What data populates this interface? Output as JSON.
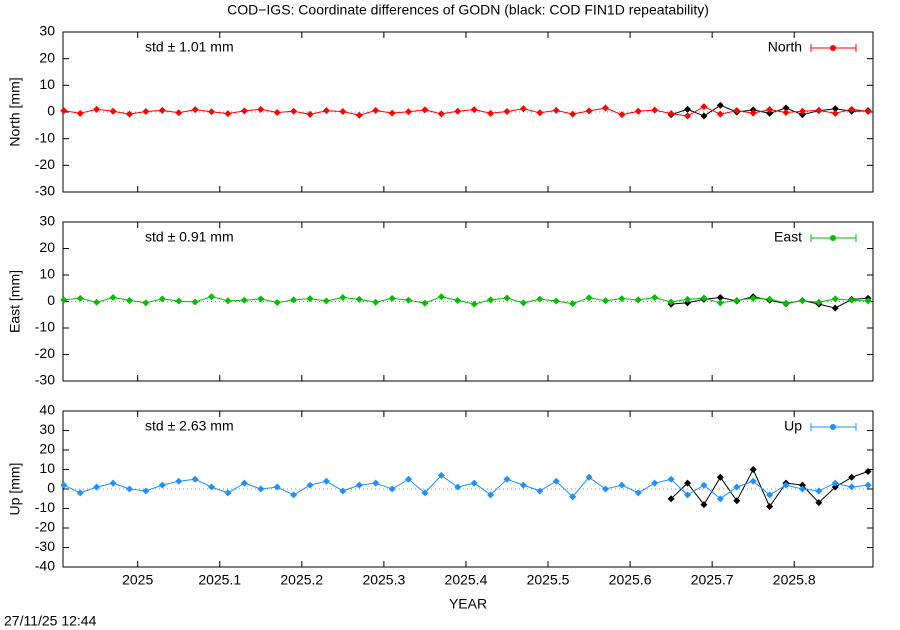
{
  "chart_data": [
    {
      "type": "line",
      "title": "COD−IGS: Coordinate differences of GODN (black: COD FIN1D repeatability)",
      "ylabel": "North [mm]",
      "annotation": "std ± 1.01 mm",
      "legend": "upper right",
      "x": [
        2024.91,
        2024.93,
        2024.95,
        2024.97,
        2024.99,
        2025.01,
        2025.03,
        2025.05,
        2025.07,
        2025.09,
        2025.11,
        2025.13,
        2025.15,
        2025.17,
        2025.19,
        2025.21,
        2025.23,
        2025.25,
        2025.27,
        2025.29,
        2025.31,
        2025.33,
        2025.35,
        2025.37,
        2025.39,
        2025.41,
        2025.43,
        2025.45,
        2025.47,
        2025.49,
        2025.51,
        2025.53,
        2025.55,
        2025.57,
        2025.59,
        2025.61,
        2025.63,
        2025.65,
        2025.67,
        2025.69,
        2025.71,
        2025.73,
        2025.75,
        2025.77,
        2025.79,
        2025.81,
        2025.83,
        2025.85,
        2025.87,
        2025.89
      ],
      "series": [
        {
          "color": "#000000",
          "values": [
            null,
            null,
            null,
            null,
            null,
            null,
            null,
            null,
            null,
            null,
            null,
            null,
            null,
            null,
            null,
            null,
            null,
            null,
            null,
            null,
            null,
            null,
            null,
            null,
            null,
            null,
            null,
            null,
            null,
            null,
            null,
            null,
            null,
            null,
            null,
            null,
            null,
            -1,
            1,
            -1.5,
            2.5,
            0,
            0.8,
            -0.5,
            1.5,
            -1,
            0.5,
            1.2,
            0.3,
            0.5
          ]
        },
        {
          "name": "North",
          "color": "#ff0000",
          "values": [
            0.5,
            -0.5,
            1,
            0.3,
            -0.8,
            0.2,
            0.6,
            -0.3,
            0.9,
            0.1,
            -0.6,
            0.4,
            1,
            -0.2,
            0.3,
            -0.9,
            0.5,
            0.2,
            -1.2,
            0.6,
            -0.4,
            0.1,
            0.8,
            -0.7,
            0.3,
            0.9,
            -0.5,
            0.2,
            1.2,
            -0.3,
            0.6,
            -0.8,
            0.4,
            1.5,
            -1,
            0.3,
            0.7,
            -0.6,
            -1.5,
            2,
            -0.8,
            0.5,
            -0.4,
            0.9,
            -0.2,
            0.3,
            0.6,
            -0.5,
            1,
            0.2
          ]
        }
      ],
      "xlim": [
        2024.909,
        2025.896
      ],
      "xticks": [
        2025,
        2025.1,
        2025.2,
        2025.3,
        2025.4,
        2025.5,
        2025.6,
        2025.7,
        2025.8
      ],
      "ylim": [
        -30,
        30
      ],
      "yticks": [
        -30,
        -20,
        -10,
        0,
        10,
        20,
        30
      ]
    },
    {
      "type": "line",
      "ylabel": "East [mm]",
      "annotation": "std ± 0.91 mm",
      "legend": "upper right",
      "x": [
        2024.91,
        2024.93,
        2024.95,
        2024.97,
        2024.99,
        2025.01,
        2025.03,
        2025.05,
        2025.07,
        2025.09,
        2025.11,
        2025.13,
        2025.15,
        2025.17,
        2025.19,
        2025.21,
        2025.23,
        2025.25,
        2025.27,
        2025.29,
        2025.31,
        2025.33,
        2025.35,
        2025.37,
        2025.39,
        2025.41,
        2025.43,
        2025.45,
        2025.47,
        2025.49,
        2025.51,
        2025.53,
        2025.55,
        2025.57,
        2025.59,
        2025.61,
        2025.63,
        2025.65,
        2025.67,
        2025.69,
        2025.71,
        2025.73,
        2025.75,
        2025.77,
        2025.79,
        2025.81,
        2025.83,
        2025.85,
        2025.87,
        2025.89
      ],
      "series": [
        {
          "color": "#000000",
          "values": [
            null,
            null,
            null,
            null,
            null,
            null,
            null,
            null,
            null,
            null,
            null,
            null,
            null,
            null,
            null,
            null,
            null,
            null,
            null,
            null,
            null,
            null,
            null,
            null,
            null,
            null,
            null,
            null,
            null,
            null,
            null,
            null,
            null,
            null,
            null,
            null,
            null,
            -1,
            -0.5,
            0.8,
            1.5,
            0.2,
            1.8,
            0.5,
            -0.8,
            0.4,
            -1,
            -2.5,
            0.8,
            1.2
          ]
        },
        {
          "name": "East",
          "color": "#00c000",
          "values": [
            0.6,
            1.2,
            -0.3,
            1.5,
            0.4,
            -0.5,
            1,
            0.2,
            -0.2,
            1.8,
            0.3,
            0.5,
            1,
            -0.4,
            0.6,
            1.1,
            0.2,
            1.5,
            0.8,
            -0.3,
            1.2,
            0.5,
            -0.6,
            1.8,
            0.4,
            -1,
            0.6,
            1.3,
            -0.5,
            0.9,
            0.2,
            -0.8,
            1.4,
            0.3,
            1.1,
            0.6,
            1.5,
            -0.2,
            0.8,
            1.3,
            -0.5,
            0.4,
            1.2,
            0.9,
            -0.6,
            0.3,
            -0.3,
            1,
            0.5,
            0.2
          ]
        }
      ],
      "xlim": [
        2024.909,
        2025.896
      ],
      "xticks": [
        2025,
        2025.1,
        2025.2,
        2025.3,
        2025.4,
        2025.5,
        2025.6,
        2025.7,
        2025.8
      ],
      "ylim": [
        -30,
        30
      ],
      "yticks": [
        -30,
        -20,
        -10,
        0,
        10,
        20,
        30
      ]
    },
    {
      "type": "line",
      "ylabel": "Up [mm]",
      "xlabel": "YEAR",
      "annotation": "std ± 2.63 mm",
      "legend": "upper right",
      "x": [
        2024.91,
        2024.93,
        2024.95,
        2024.97,
        2024.99,
        2025.01,
        2025.03,
        2025.05,
        2025.07,
        2025.09,
        2025.11,
        2025.13,
        2025.15,
        2025.17,
        2025.19,
        2025.21,
        2025.23,
        2025.25,
        2025.27,
        2025.29,
        2025.31,
        2025.33,
        2025.35,
        2025.37,
        2025.39,
        2025.41,
        2025.43,
        2025.45,
        2025.47,
        2025.49,
        2025.51,
        2025.53,
        2025.55,
        2025.57,
        2025.59,
        2025.61,
        2025.63,
        2025.65,
        2025.67,
        2025.69,
        2025.71,
        2025.73,
        2025.75,
        2025.77,
        2025.79,
        2025.81,
        2025.83,
        2025.85,
        2025.87,
        2025.89
      ],
      "series": [
        {
          "color": "#000000",
          "values": [
            null,
            null,
            null,
            null,
            null,
            null,
            null,
            null,
            null,
            null,
            null,
            null,
            null,
            null,
            null,
            null,
            null,
            null,
            null,
            null,
            null,
            null,
            null,
            null,
            null,
            null,
            null,
            null,
            null,
            null,
            null,
            null,
            null,
            null,
            null,
            null,
            null,
            -5,
            3,
            -8,
            6,
            -6,
            10,
            -9,
            3,
            2,
            -7,
            1,
            6,
            9
          ]
        },
        {
          "name": "Up",
          "color": "#1e90ff",
          "values": [
            2,
            -2,
            1,
            3,
            0,
            -1,
            2,
            4,
            5,
            1,
            -2,
            3,
            0,
            1,
            -3,
            2,
            4,
            -1,
            2,
            3,
            0,
            5,
            -2,
            7,
            1,
            3,
            -3,
            5,
            2,
            -1,
            4,
            -4,
            6,
            0,
            2,
            -2,
            3,
            5,
            -3,
            2,
            -5,
            1,
            4,
            -3,
            2,
            0,
            -1,
            3,
            1,
            2
          ]
        }
      ],
      "xlim": [
        2024.909,
        2025.896
      ],
      "xticks": [
        2025,
        2025.1,
        2025.2,
        2025.3,
        2025.4,
        2025.5,
        2025.6,
        2025.7,
        2025.8
      ],
      "ylim": [
        -40,
        40
      ],
      "yticks": [
        -40,
        -30,
        -20,
        -10,
        0,
        10,
        20,
        30,
        40
      ]
    }
  ],
  "footer": "27/11/25 12:44"
}
